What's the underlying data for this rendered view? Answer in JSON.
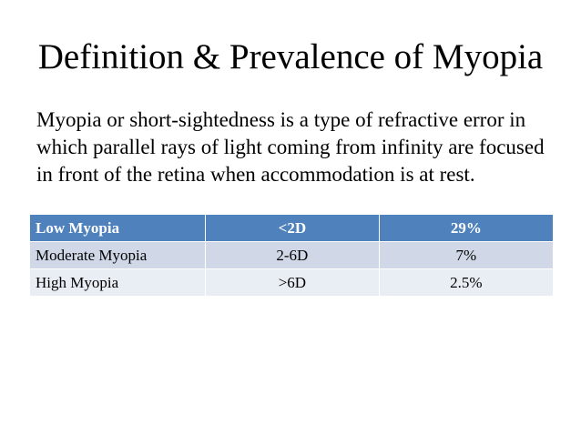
{
  "slide": {
    "title": "Definition & Prevalence of Myopia",
    "body": "Myopia or short-sightedness is a type of refractive error in which parallel rays of light coming from infinity are focused in front of the retina when accommodation is at rest."
  },
  "table": {
    "header": {
      "label": "Low Myopia",
      "range": "<2D",
      "percent": "29%"
    },
    "rows": [
      {
        "label": "Moderate Myopia",
        "range": "2-6D",
        "percent": "7%"
      },
      {
        "label": "High Myopia",
        "range": ">6D",
        "percent": "2.5%"
      }
    ],
    "colors": {
      "header_bg": "#4f81bd",
      "row_odd_bg": "#d0d8e8",
      "row_even_bg": "#e9edf4"
    }
  }
}
